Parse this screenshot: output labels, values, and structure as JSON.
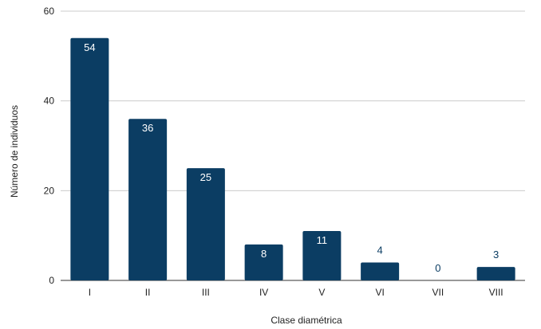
{
  "chart_data": {
    "type": "bar",
    "categories": [
      "I",
      "II",
      "III",
      "IV",
      "V",
      "VI",
      "VII",
      "VIII"
    ],
    "values": [
      54,
      36,
      25,
      8,
      11,
      4,
      0,
      3
    ],
    "xlabel": "Clase diamétrica",
    "ylabel": "Número de individuos",
    "ylim": [
      0,
      60
    ],
    "yticks": [
      0,
      20,
      40,
      60
    ],
    "grid": true,
    "bar_color": "#0b3d63",
    "label_inside_color": "#ffffff",
    "label_outside_color": "#0b3d63"
  }
}
